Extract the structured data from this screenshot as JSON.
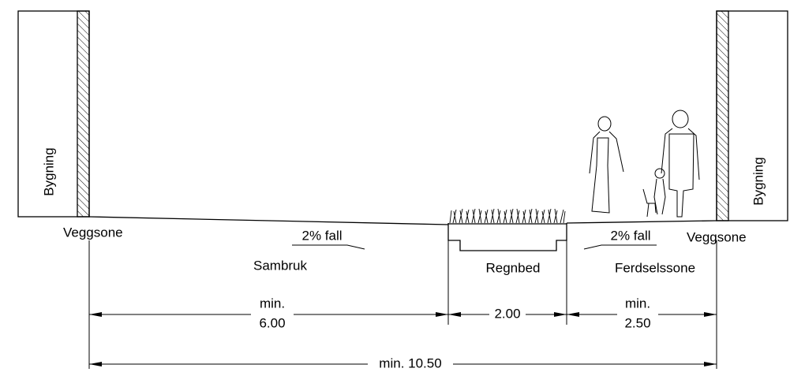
{
  "buildings": [
    {
      "label": "Bygning"
    },
    {
      "label": "Bygning"
    }
  ],
  "wall_zones": [
    {
      "label": "Veggsone"
    },
    {
      "label": "Veggsone"
    }
  ],
  "slopes": [
    {
      "label": "2% fall"
    },
    {
      "label": "2% fall"
    }
  ],
  "areas": [
    {
      "label": "Sambruk"
    },
    {
      "label": "Regnbed"
    },
    {
      "label": "Ferdselssone"
    }
  ],
  "dimensions": [
    {
      "prefix": "min.",
      "value": "6.00"
    },
    {
      "value": "2.00"
    },
    {
      "prefix": "min.",
      "value": "2.50"
    },
    {
      "value": "min. 10.50"
    }
  ]
}
